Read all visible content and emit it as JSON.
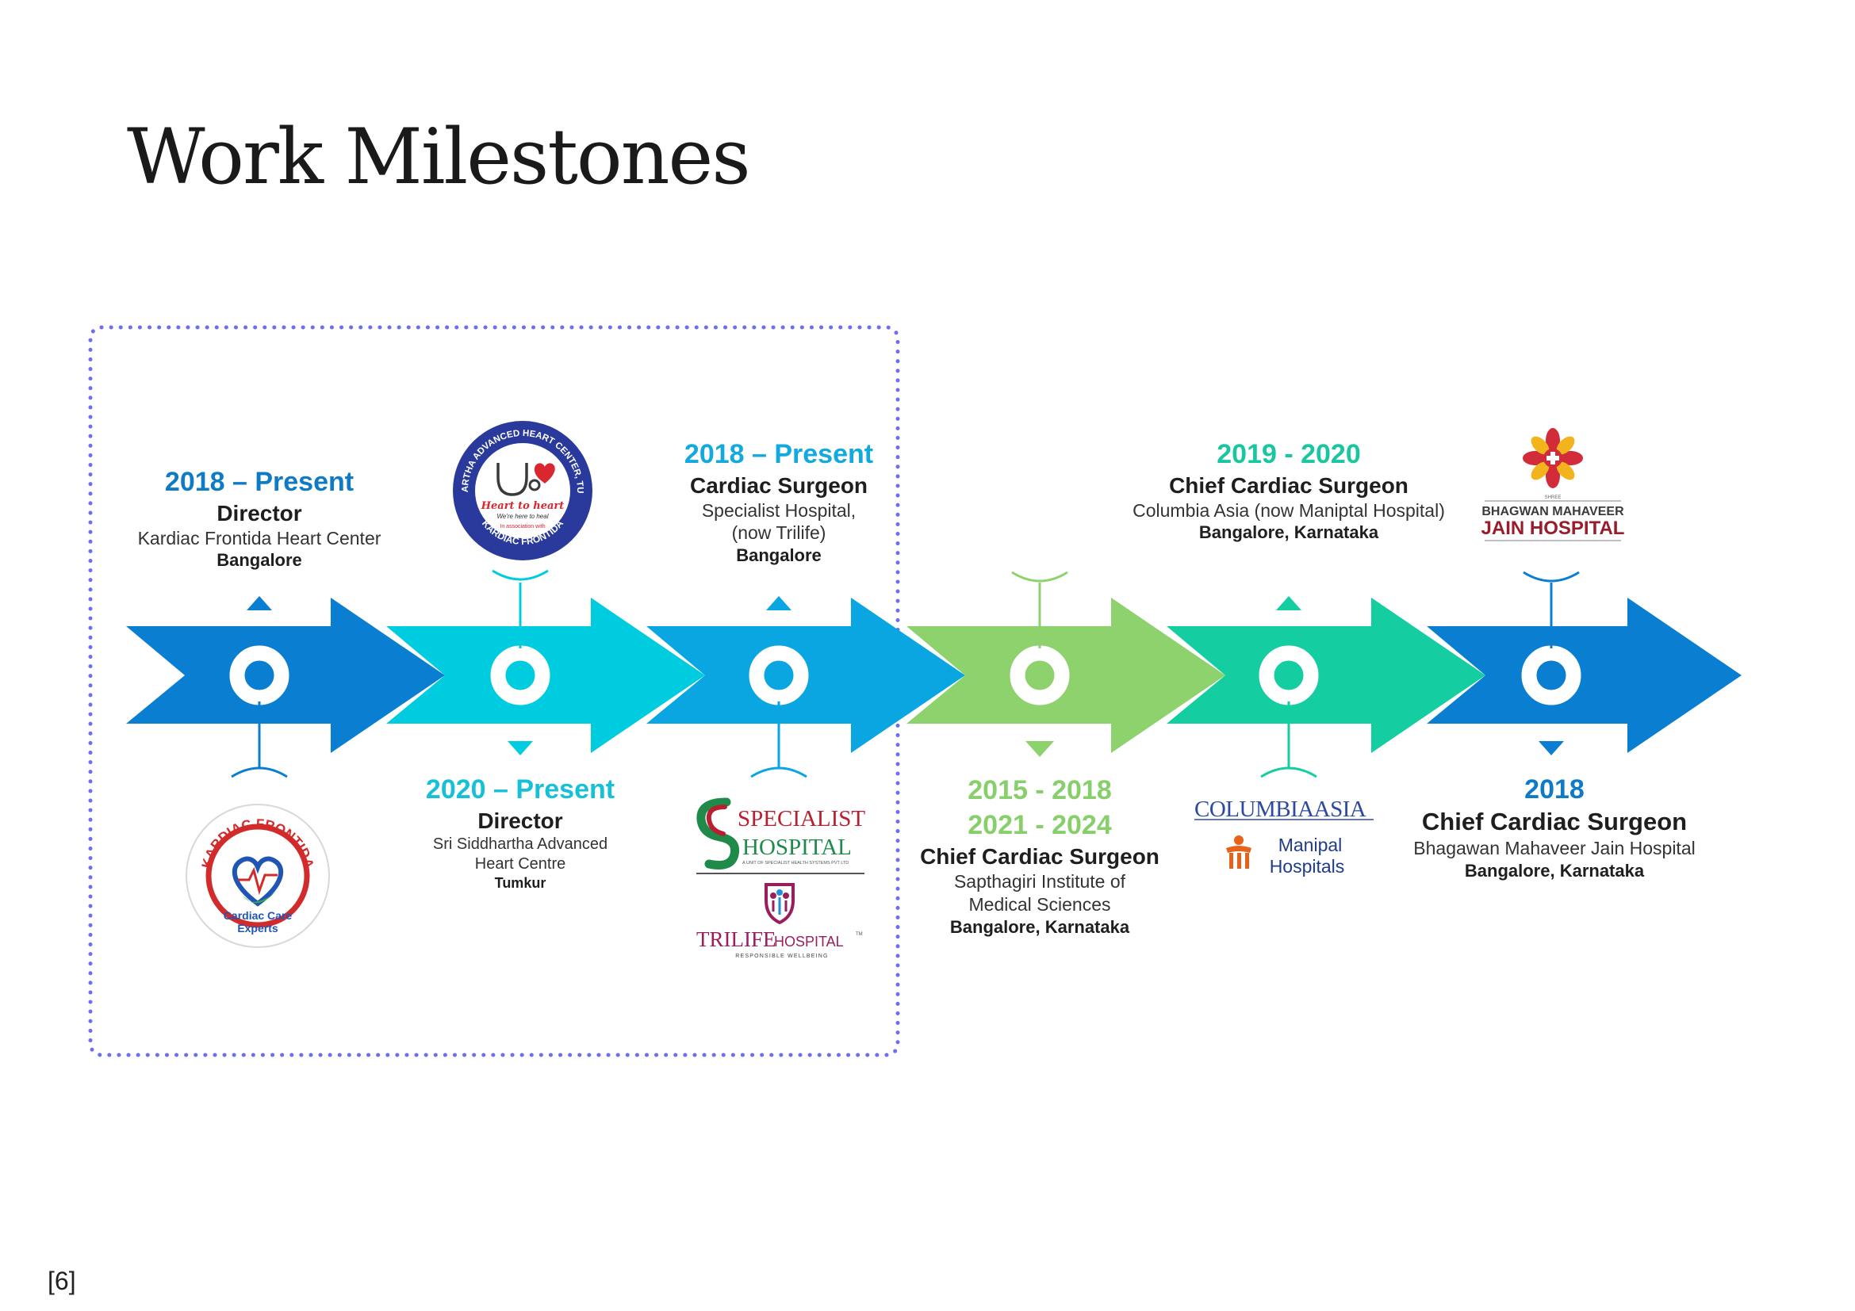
{
  "page": {
    "title": "Work Milestones",
    "page_number": "[6]"
  },
  "colors": {
    "blue": "#0a7fd2",
    "cyan": "#00cce0",
    "sky": "#0aa6e2",
    "green": "#8ed26d",
    "teal": "#14cda0",
    "year_blue": "#0f7bc6",
    "year_cyan": "#16c0d6",
    "year_sky": "#12a8e0",
    "year_green": "#86cf6a",
    "year_teal": "#19c6a0",
    "dotted_frame": "#6f6ef0"
  },
  "milestones": [
    {
      "years": [
        "2018 – Present"
      ],
      "role": "Director",
      "org": [
        "Kardiac Frontida Heart Center"
      ],
      "location": "Bangalore"
    },
    {
      "years": [
        "2020 – Present"
      ],
      "role": "Director",
      "org": [
        "Sri Siddhartha Advanced",
        "Heart Centre"
      ],
      "location": "Tumkur"
    },
    {
      "years": [
        "2018 – Present"
      ],
      "role": "Cardiac Surgeon",
      "org": [
        "Specialist Hospital,",
        "(now Trilife)"
      ],
      "location": "Bangalore"
    },
    {
      "years": [
        "2015 - 2018",
        "2021 - 2024"
      ],
      "role": "Chief Cardiac Surgeon",
      "org": [
        "Sapthagiri Institute of",
        "Medical Sciences"
      ],
      "location": "Bangalore, Karnataka"
    },
    {
      "years": [
        "2019 - 2020"
      ],
      "role": "Chief Cardiac Surgeon",
      "org": [
        "Columbia Asia (now Maniptal Hospital)"
      ],
      "location": "Bangalore, Karnataka"
    },
    {
      "years": [
        "2018"
      ],
      "role": "Chief Cardiac Surgeon",
      "org": [
        "Bhagawan Mahaveer Jain Hospital"
      ],
      "location": "Bangalore, Karnataka"
    }
  ],
  "logos": {
    "kardiac": {
      "name": "KARDIAC FRONTIDA",
      "tagline_1": "Cardiac Care",
      "tagline_2": "Experts"
    },
    "siddhartha": {
      "ring_text": "SIDDHARTHA ADVANCED HEART CENTER, TUMKUR",
      "ring_bottom": "KARDIAC FRONTIDA",
      "center_1": "Heart to heart",
      "center_2": "We're here to heal",
      "center_3": "In association with"
    },
    "specialist": {
      "line_1": "SPECIALIST",
      "line_2": "HOSPITAL",
      "sub": "A UNIT OF SPECIALIST HEALTH SYSTEMS PVT LTD"
    },
    "trilife": {
      "name_1": "TRILIFE",
      "name_2": "HOSPITAL",
      "tm": "TM",
      "tagline": "RESPONSIBLE WELLBEING"
    },
    "columbia": {
      "name_1": "COLUMBIA",
      "name_2": "ASIA"
    },
    "manipal": {
      "line_1": "Manipal",
      "line_2": "Hospitals"
    },
    "jain": {
      "prefix": "SHREE",
      "line_1": "BHAGWAN MAHAVEER",
      "line_2": "JAIN HOSPITAL"
    }
  }
}
